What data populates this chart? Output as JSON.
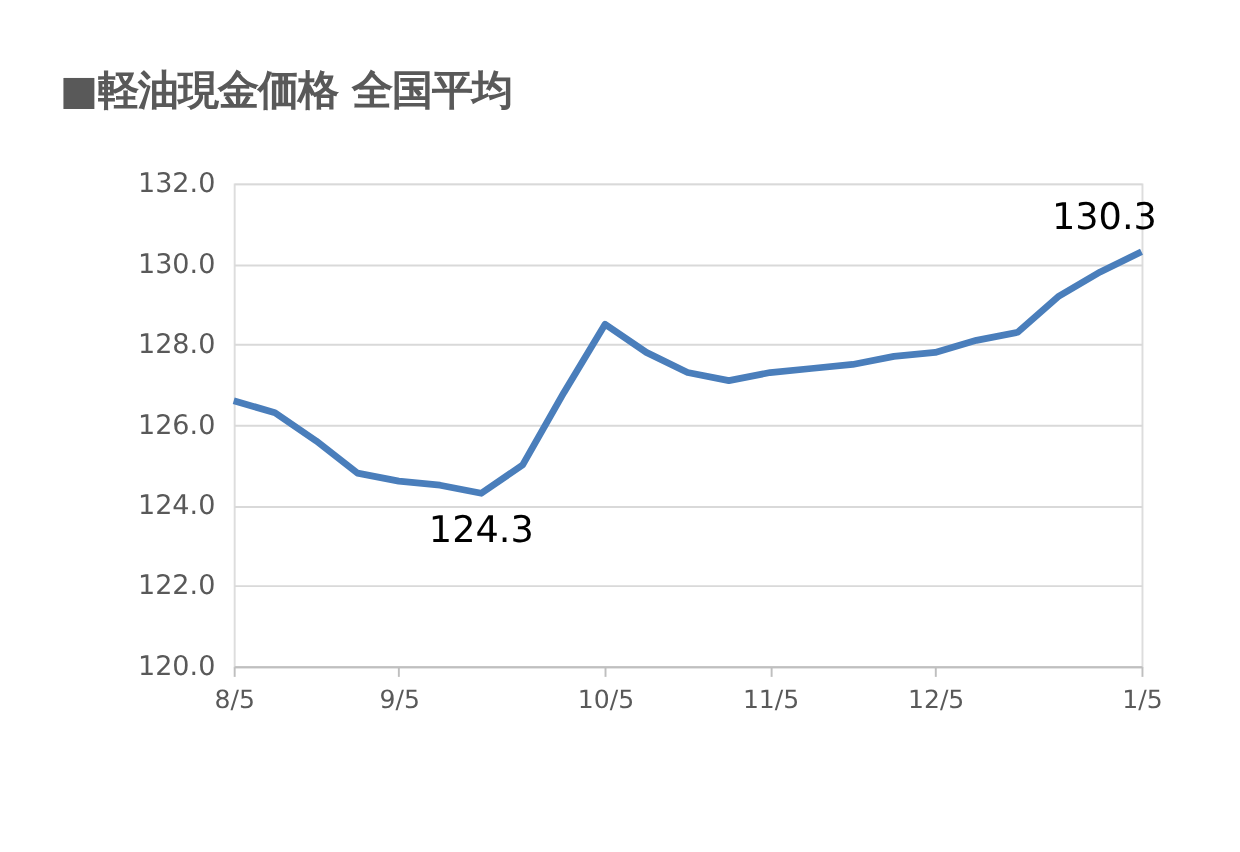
{
  "chart_data": {
    "type": "line",
    "title": "■軽油現金価格  全国平均",
    "categories": [
      "8/5",
      null,
      null,
      null,
      "9/5",
      null,
      null,
      null,
      null,
      "10/5",
      null,
      null,
      null,
      "11/5",
      null,
      null,
      null,
      "12/5",
      null,
      null,
      null,
      null,
      "1/5"
    ],
    "series": [
      {
        "color": "#4a7ebb",
        "values": [
          126.6,
          126.3,
          125.6,
          124.8,
          124.6,
          124.5,
          124.3,
          125.0,
          126.8,
          128.5,
          127.8,
          127.3,
          127.1,
          127.3,
          127.4,
          127.5,
          127.7,
          127.8,
          128.1,
          128.3,
          129.2,
          129.8,
          130.3
        ],
        "value_labels": [
          null,
          null,
          null,
          null,
          null,
          null,
          "124.3",
          null,
          null,
          null,
          null,
          null,
          null,
          null,
          null,
          null,
          null,
          null,
          null,
          null,
          null,
          null,
          "130.3"
        ]
      }
    ],
    "ylim": [
      120,
      132
    ],
    "yticks": [
      {
        "value": 120,
        "label": "120.0"
      },
      {
        "value": 122,
        "label": "122.0"
      },
      {
        "value": 124,
        "label": "124.0"
      },
      {
        "value": 126,
        "label": "126.0"
      },
      {
        "value": 128,
        "label": "128.0"
      },
      {
        "value": 130,
        "label": "130.0"
      },
      {
        "value": 132,
        "label": "132.0"
      }
    ],
    "grid": "y",
    "legend": false,
    "marker": "none",
    "line_style": "solid"
  }
}
